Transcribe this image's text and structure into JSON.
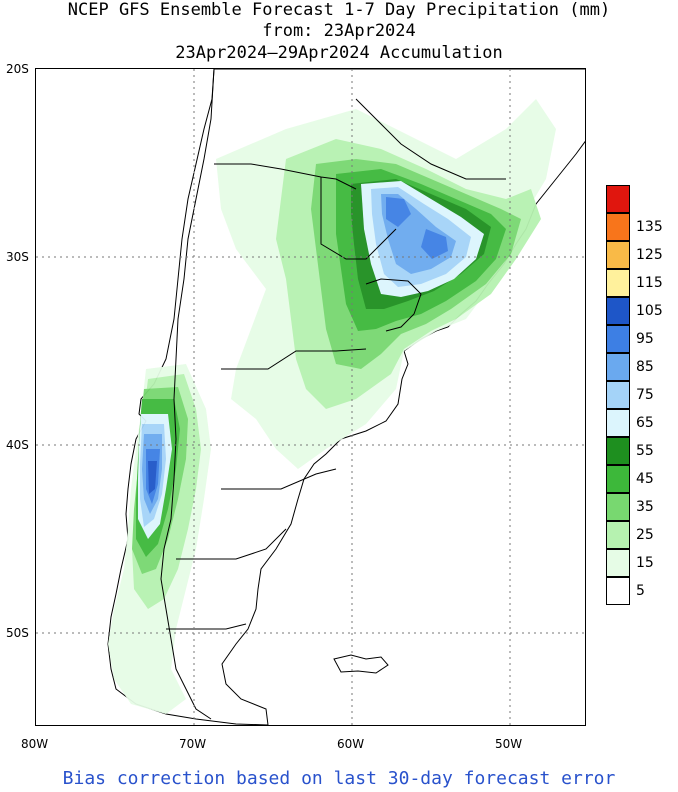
{
  "header": {
    "title_line1": "NCEP GFS Ensemble Forecast 1-7 Day Precipitation (mm)",
    "title_line2": "from: 23Apr2024",
    "title_line3": "23Apr2024–29Apr2024 Accumulation"
  },
  "axes": {
    "lat_labels": [
      "20S",
      "30S",
      "40S",
      "50S"
    ],
    "lon_labels": [
      "80W",
      "70W",
      "60W",
      "50W"
    ],
    "lon_range": [
      -80,
      -45
    ],
    "lat_range": [
      -20,
      -55
    ]
  },
  "legend": {
    "unit": "mm",
    "bins": [
      {
        "label": "5",
        "color": "#ffffff"
      },
      {
        "label": "15",
        "color": "#e6fce6"
      },
      {
        "label": "25",
        "color": "#b6f2b0"
      },
      {
        "label": "35",
        "color": "#78d870"
      },
      {
        "label": "45",
        "color": "#3db83a"
      },
      {
        "label": "55",
        "color": "#1e8f1f"
      },
      {
        "label": "65",
        "color": "#dcf5fd"
      },
      {
        "label": "75",
        "color": "#a4d3f8"
      },
      {
        "label": "85",
        "color": "#6aa9ef"
      },
      {
        "label": "95",
        "color": "#3d7fe4"
      },
      {
        "label": "105",
        "color": "#1e56c8"
      },
      {
        "label": "115",
        "color": "#fff19c"
      },
      {
        "label": "125",
        "color": "#f9ba47"
      },
      {
        "label": "135",
        "color": "#f8751b"
      },
      {
        "label": "",
        "color": "#e0160e"
      }
    ]
  },
  "footer": {
    "note": "Bias correction based on last 30-day forecast error"
  }
}
